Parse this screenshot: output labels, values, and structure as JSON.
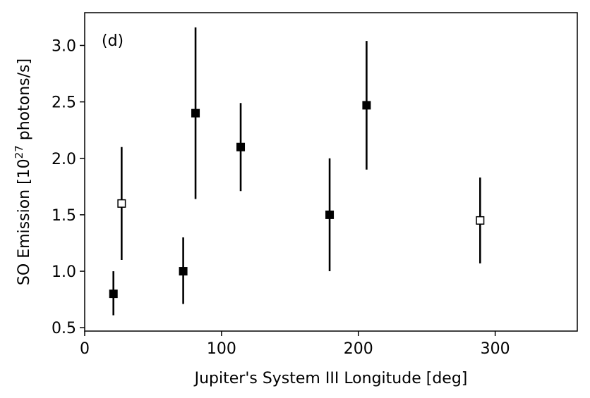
{
  "chart_data": {
    "type": "scatter",
    "panel_label": "(d)",
    "xlabel": "Jupiter's System III Longitude [deg]",
    "ylabel_prefix": "SO Emission [10",
    "ylabel_exponent": "27",
    "ylabel_suffix": " photons/s]",
    "xlim": [
      0,
      360
    ],
    "ylim": [
      0.47,
      3.29
    ],
    "x_ticks": [
      0,
      100,
      200,
      300
    ],
    "x_tick_labels": [
      "0",
      "100",
      "200",
      "300"
    ],
    "y_ticks": [
      0.5,
      1.0,
      1.5,
      2.0,
      2.5,
      3.0
    ],
    "y_tick_labels": [
      "0.5",
      "1.0",
      "1.5",
      "2.0",
      "2.5",
      "3.0"
    ],
    "grid": false,
    "marker_color": "#000000",
    "points": [
      {
        "x": 21,
        "y": 0.8,
        "y_low": 0.61,
        "y_high": 1.0,
        "filled": true
      },
      {
        "x": 27,
        "y": 1.6,
        "y_low": 1.1,
        "y_high": 2.1,
        "filled": false
      },
      {
        "x": 72,
        "y": 1.0,
        "y_low": 0.71,
        "y_high": 1.3,
        "filled": true
      },
      {
        "x": 81,
        "y": 2.4,
        "y_low": 1.64,
        "y_high": 3.16,
        "filled": true
      },
      {
        "x": 114,
        "y": 2.1,
        "y_low": 1.71,
        "y_high": 2.49,
        "filled": true
      },
      {
        "x": 179,
        "y": 1.5,
        "y_low": 1.0,
        "y_high": 2.0,
        "filled": true
      },
      {
        "x": 206,
        "y": 2.47,
        "y_low": 1.9,
        "y_high": 3.04,
        "filled": true
      },
      {
        "x": 289,
        "y": 1.45,
        "y_low": 1.07,
        "y_high": 1.83,
        "filled": false
      }
    ]
  }
}
